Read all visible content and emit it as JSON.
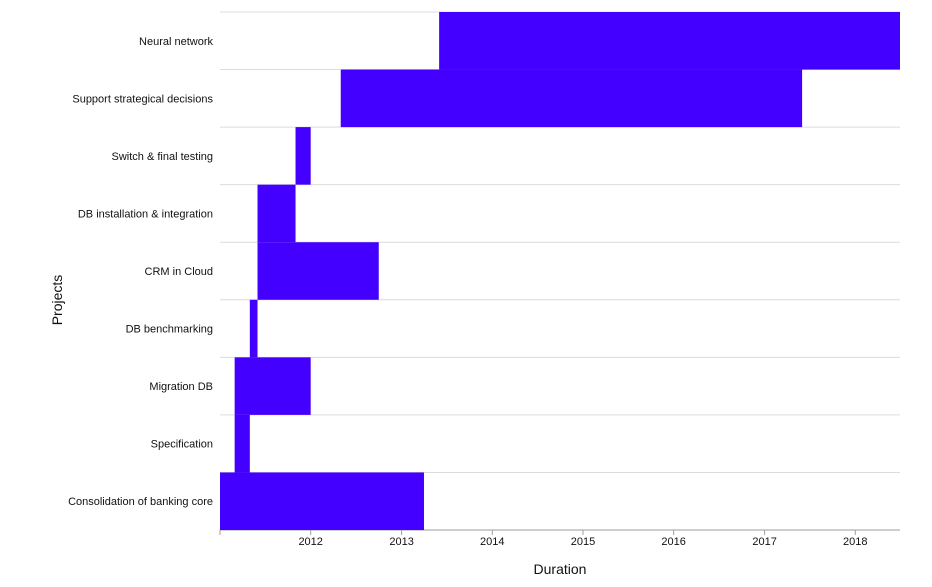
{
  "chart_data": {
    "type": "bar",
    "orientation": "horizontal-range",
    "xlabel": "Duration",
    "ylabel": "Projects",
    "xlim": [
      "2011-01-01",
      "2018-06-30"
    ],
    "x_ticks": [
      "2012",
      "2013",
      "2014",
      "2015",
      "2016",
      "2017",
      "2018"
    ],
    "grid": true,
    "bar_color": "#4300ff",
    "tasks": [
      {
        "name": "Neural network",
        "start": "2013-06-01",
        "end": "2018-06-30"
      },
      {
        "name": "Support strategical decisions",
        "start": "2012-05-01",
        "end": "2017-06-01"
      },
      {
        "name": "Switch & final testing",
        "start": "2011-11-01",
        "end": "2012-01-01"
      },
      {
        "name": "DB installation & integration",
        "start": "2011-06-01",
        "end": "2011-11-01"
      },
      {
        "name": "CRM in Cloud",
        "start": "2011-06-01",
        "end": "2012-10-01"
      },
      {
        "name": "DB benchmarking",
        "start": "2011-05-01",
        "end": "2011-06-01"
      },
      {
        "name": "Migration DB",
        "start": "2011-03-01",
        "end": "2012-01-01"
      },
      {
        "name": "Specification",
        "start": "2011-03-01",
        "end": "2011-05-01"
      },
      {
        "name": "Consolidation of banking core",
        "start": "2011-01-01",
        "end": "2013-04-01"
      }
    ]
  }
}
